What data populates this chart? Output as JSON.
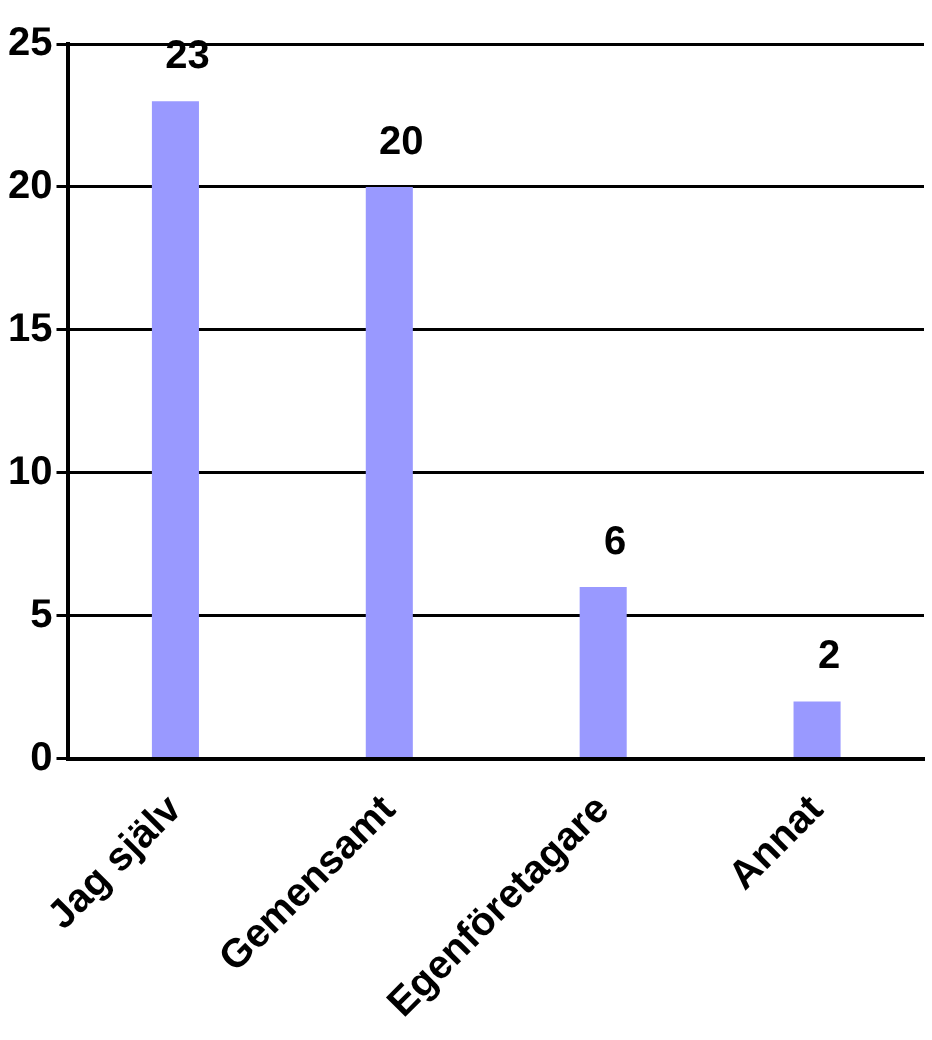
{
  "chart_data": {
    "type": "bar",
    "categories": [
      "Jag själv",
      "Gemensamt",
      "Egenföretagare",
      "Annat"
    ],
    "values": [
      23,
      20,
      6,
      2
    ],
    "color": "#9999ff",
    "ylim": [
      0,
      25
    ],
    "yticks": [
      0,
      5,
      10,
      15,
      20,
      25
    ],
    "grid": "y",
    "data_labels": true,
    "legend": false
  }
}
